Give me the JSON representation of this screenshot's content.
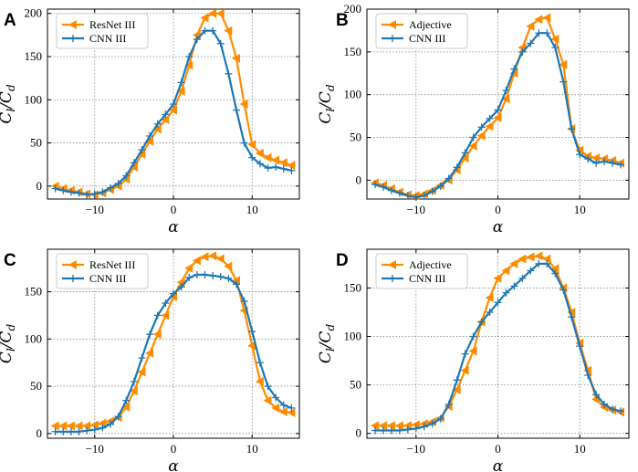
{
  "colors": {
    "series_a": "#ff8c00",
    "series_b": "#1f77b4",
    "grid": "#888888"
  },
  "chart_data": [
    {
      "type": "line",
      "panel_label": "A",
      "xlabel": "α",
      "ylabel_main": "C",
      "ylabel_sub1": "l",
      "ylabel_slash": "/",
      "ylabel_sub2": "d",
      "xlim": [
        -16,
        16
      ],
      "ylim": [
        -15,
        205
      ],
      "xticks": [
        -10,
        0,
        10
      ],
      "xtick_labels": [
        "−10",
        "0",
        "10"
      ],
      "yticks": [
        0,
        50,
        100,
        150,
        200
      ],
      "ytick_labels": [
        "0",
        "50",
        "100",
        "150",
        "200"
      ],
      "grid": true,
      "legend": "top-left",
      "series": [
        {
          "name": "ResNet III",
          "color": "#ff8c00",
          "marker": "triangle-left",
          "x": [
            -15,
            -14,
            -13,
            -12,
            -11,
            -10,
            -9,
            -8,
            -7,
            -6,
            -5,
            -4,
            -3,
            -2,
            -1,
            0,
            1,
            2,
            3,
            4,
            5,
            6,
            7,
            8,
            9,
            10,
            11,
            12,
            13,
            14,
            15
          ],
          "y": [
            0,
            -3,
            -5,
            -7,
            -9,
            -10,
            -8,
            -4,
            0,
            8,
            22,
            37,
            52,
            66,
            77,
            88,
            110,
            140,
            175,
            195,
            200,
            200,
            180,
            148,
            95,
            48,
            38,
            33,
            30,
            27,
            24
          ]
        },
        {
          "name": "CNN III",
          "color": "#1f77b4",
          "marker": "plus",
          "x": [
            -15,
            -14,
            -13,
            -12,
            -11,
            -10,
            -9,
            -8,
            -7,
            -6,
            -5,
            -4,
            -3,
            -2,
            -1,
            0,
            1,
            2,
            3,
            4,
            5,
            6,
            7,
            8,
            9,
            10,
            11,
            12,
            13,
            14,
            15
          ],
          "y": [
            -3,
            -5,
            -7,
            -8,
            -10,
            -9,
            -7,
            -2,
            3,
            12,
            27,
            42,
            58,
            72,
            83,
            95,
            120,
            150,
            170,
            180,
            180,
            165,
            130,
            88,
            50,
            33,
            26,
            21,
            22,
            20,
            18
          ]
        }
      ]
    },
    {
      "type": "line",
      "panel_label": "B",
      "xlabel": "α",
      "ylabel_main": "C",
      "ylabel_sub1": "l",
      "ylabel_slash": "/",
      "ylabel_sub2": "d",
      "xlim": [
        -16,
        16
      ],
      "ylim": [
        -22,
        200
      ],
      "xticks": [
        -10,
        0,
        10
      ],
      "xtick_labels": [
        "−10",
        "0",
        "10"
      ],
      "yticks": [
        0,
        50,
        100,
        150,
        200
      ],
      "ytick_labels": [
        "0",
        "50",
        "100",
        "150",
        "200"
      ],
      "grid": true,
      "legend": "top-left",
      "series": [
        {
          "name": "Adjective",
          "color": "#ff8c00",
          "marker": "triangle-left",
          "x": [
            -15,
            -14,
            -13,
            -12,
            -11,
            -10,
            -9,
            -8,
            -7,
            -6,
            -5,
            -4,
            -3,
            -2,
            -1,
            0,
            1,
            2,
            3,
            4,
            5,
            6,
            7,
            8,
            9,
            10,
            11,
            12,
            13,
            14,
            15
          ],
          "y": [
            -3,
            -6,
            -10,
            -14,
            -17,
            -18,
            -16,
            -12,
            -6,
            0,
            12,
            26,
            40,
            52,
            63,
            73,
            95,
            125,
            155,
            180,
            188,
            190,
            165,
            135,
            60,
            35,
            28,
            26,
            25,
            23,
            20
          ]
        },
        {
          "name": "CNN III",
          "color": "#1f77b4",
          "marker": "plus",
          "x": [
            -15,
            -14,
            -13,
            -12,
            -11,
            -10,
            -9,
            -8,
            -7,
            -6,
            -5,
            -4,
            -3,
            -2,
            -1,
            0,
            1,
            2,
            3,
            4,
            5,
            6,
            7,
            8,
            9,
            10,
            11,
            12,
            13,
            14,
            15
          ],
          "y": [
            -5,
            -8,
            -12,
            -15,
            -18,
            -20,
            -18,
            -13,
            -7,
            2,
            15,
            32,
            50,
            62,
            72,
            82,
            105,
            130,
            150,
            160,
            172,
            172,
            155,
            115,
            60,
            30,
            25,
            20,
            22,
            20,
            18
          ]
        }
      ]
    },
    {
      "type": "line",
      "panel_label": "C",
      "xlabel": "α",
      "ylabel_main": "C",
      "ylabel_sub1": "l",
      "ylabel_slash": "/",
      "ylabel_sub2": "d",
      "xlim": [
        -16,
        16
      ],
      "ylim": [
        -5,
        195
      ],
      "xticks": [
        -10,
        0,
        10
      ],
      "xtick_labels": [
        "−10",
        "0",
        "10"
      ],
      "yticks": [
        0,
        50,
        100,
        150
      ],
      "ytick_labels": [
        "0",
        "50",
        "100",
        "150"
      ],
      "grid": true,
      "legend": "top-left",
      "series": [
        {
          "name": "ResNet III",
          "color": "#ff8c00",
          "marker": "triangle-left",
          "x": [
            -15,
            -14,
            -13,
            -12,
            -11,
            -10,
            -9,
            -8,
            -7,
            -6,
            -5,
            -4,
            -3,
            -2,
            -1,
            0,
            1,
            2,
            3,
            4,
            5,
            6,
            7,
            8,
            9,
            10,
            11,
            12,
            13,
            14,
            15
          ],
          "y": [
            8,
            8,
            8,
            8,
            8,
            9,
            11,
            13,
            17,
            28,
            45,
            65,
            85,
            105,
            125,
            145,
            160,
            175,
            183,
            187,
            188,
            185,
            177,
            162,
            130,
            93,
            55,
            35,
            27,
            23,
            22
          ]
        },
        {
          "name": "CNN III",
          "color": "#1f77b4",
          "marker": "plus",
          "x": [
            -15,
            -14,
            -13,
            -12,
            -11,
            -10,
            -9,
            -8,
            -7,
            -6,
            -5,
            -4,
            -3,
            -2,
            -1,
            0,
            1,
            2,
            3,
            4,
            5,
            6,
            7,
            8,
            9,
            10,
            11,
            12,
            13,
            14,
            15
          ],
          "y": [
            2,
            2,
            2,
            2,
            3,
            4,
            6,
            10,
            18,
            35,
            55,
            80,
            105,
            125,
            138,
            148,
            155,
            165,
            168,
            168,
            167,
            166,
            164,
            158,
            140,
            108,
            75,
            50,
            38,
            30,
            27
          ]
        }
      ]
    },
    {
      "type": "line",
      "panel_label": "D",
      "xlabel": "α",
      "ylabel_main": "C",
      "ylabel_sub1": "l",
      "ylabel_slash": "/",
      "ylabel_sub2": "d",
      "xlim": [
        -16,
        16
      ],
      "ylim": [
        -5,
        190
      ],
      "xticks": [
        -10,
        0,
        10
      ],
      "xtick_labels": [
        "−10",
        "0",
        "10"
      ],
      "yticks": [
        0,
        50,
        100,
        150
      ],
      "ytick_labels": [
        "0",
        "50",
        "100",
        "150"
      ],
      "grid": true,
      "legend": "top-left",
      "series": [
        {
          "name": "Adjective",
          "color": "#ff8c00",
          "marker": "triangle-left",
          "x": [
            -15,
            -14,
            -13,
            -12,
            -11,
            -10,
            -9,
            -8,
            -7,
            -6,
            -5,
            -4,
            -3,
            -2,
            -1,
            0,
            1,
            2,
            3,
            4,
            5,
            6,
            7,
            8,
            9,
            10,
            11,
            12,
            13,
            14,
            15
          ],
          "y": [
            8,
            8,
            8,
            8,
            8,
            9,
            10,
            12,
            16,
            28,
            45,
            65,
            85,
            115,
            140,
            160,
            168,
            175,
            180,
            182,
            183,
            180,
            170,
            150,
            125,
            93,
            65,
            35,
            27,
            24,
            22
          ]
        },
        {
          "name": "CNN III",
          "color": "#1f77b4",
          "marker": "plus",
          "x": [
            -15,
            -14,
            -13,
            -12,
            -11,
            -10,
            -9,
            -8,
            -7,
            -6,
            -5,
            -4,
            -3,
            -2,
            -1,
            0,
            1,
            2,
            3,
            4,
            5,
            6,
            7,
            8,
            9,
            10,
            11,
            12,
            13,
            14,
            15
          ],
          "y": [
            3,
            3,
            3,
            3,
            4,
            5,
            7,
            10,
            15,
            30,
            55,
            82,
            100,
            115,
            125,
            135,
            145,
            152,
            160,
            168,
            175,
            175,
            165,
            148,
            120,
            90,
            60,
            40,
            30,
            25,
            23
          ]
        }
      ]
    }
  ]
}
